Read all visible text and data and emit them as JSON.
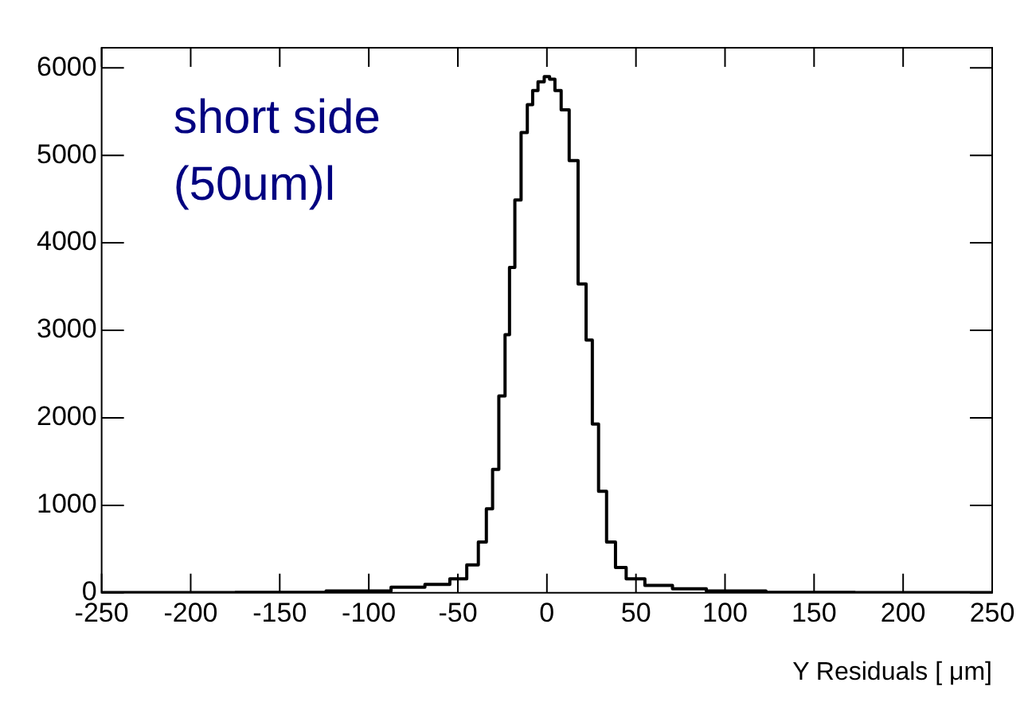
{
  "chart_data": {
    "type": "step",
    "xlabel": "Y Residuals [ μm]",
    "annotations": [
      "short side\n(50um)l"
    ],
    "x": [
      -250,
      -200,
      -150,
      -98,
      -77,
      -60,
      -49,
      -41,
      -36,
      -32,
      -29,
      -25,
      -22,
      -20,
      -16,
      -13,
      -9,
      -7,
      -3,
      0,
      3,
      6,
      10,
      15,
      20,
      24,
      27,
      31,
      36,
      41,
      48,
      62,
      79,
      100,
      146,
      200,
      250
    ],
    "series": [
      {
        "color": "#000000",
        "values": [
          2,
          3,
          5,
          20,
          65,
          95,
          160,
          320,
          580,
          960,
          1410,
          2250,
          2950,
          3720,
          4490,
          5260,
          5580,
          5740,
          5840,
          5900,
          5870,
          5740,
          5520,
          4940,
          3530,
          2890,
          1930,
          1160,
          580,
          290,
          160,
          85,
          45,
          20,
          5,
          3,
          2
        ]
      }
    ],
    "xlim": [
      -250,
      250
    ],
    "xticks": [
      -250,
      -200,
      -150,
      -100,
      -50,
      0,
      50,
      100,
      150,
      200,
      250
    ],
    "ylim": [
      0,
      6230
    ],
    "yticks": [
      0,
      1000,
      2000,
      3000,
      4000,
      5000,
      6000
    ],
    "grid": false,
    "legend": false,
    "line_style": "solid",
    "marker": "none"
  }
}
